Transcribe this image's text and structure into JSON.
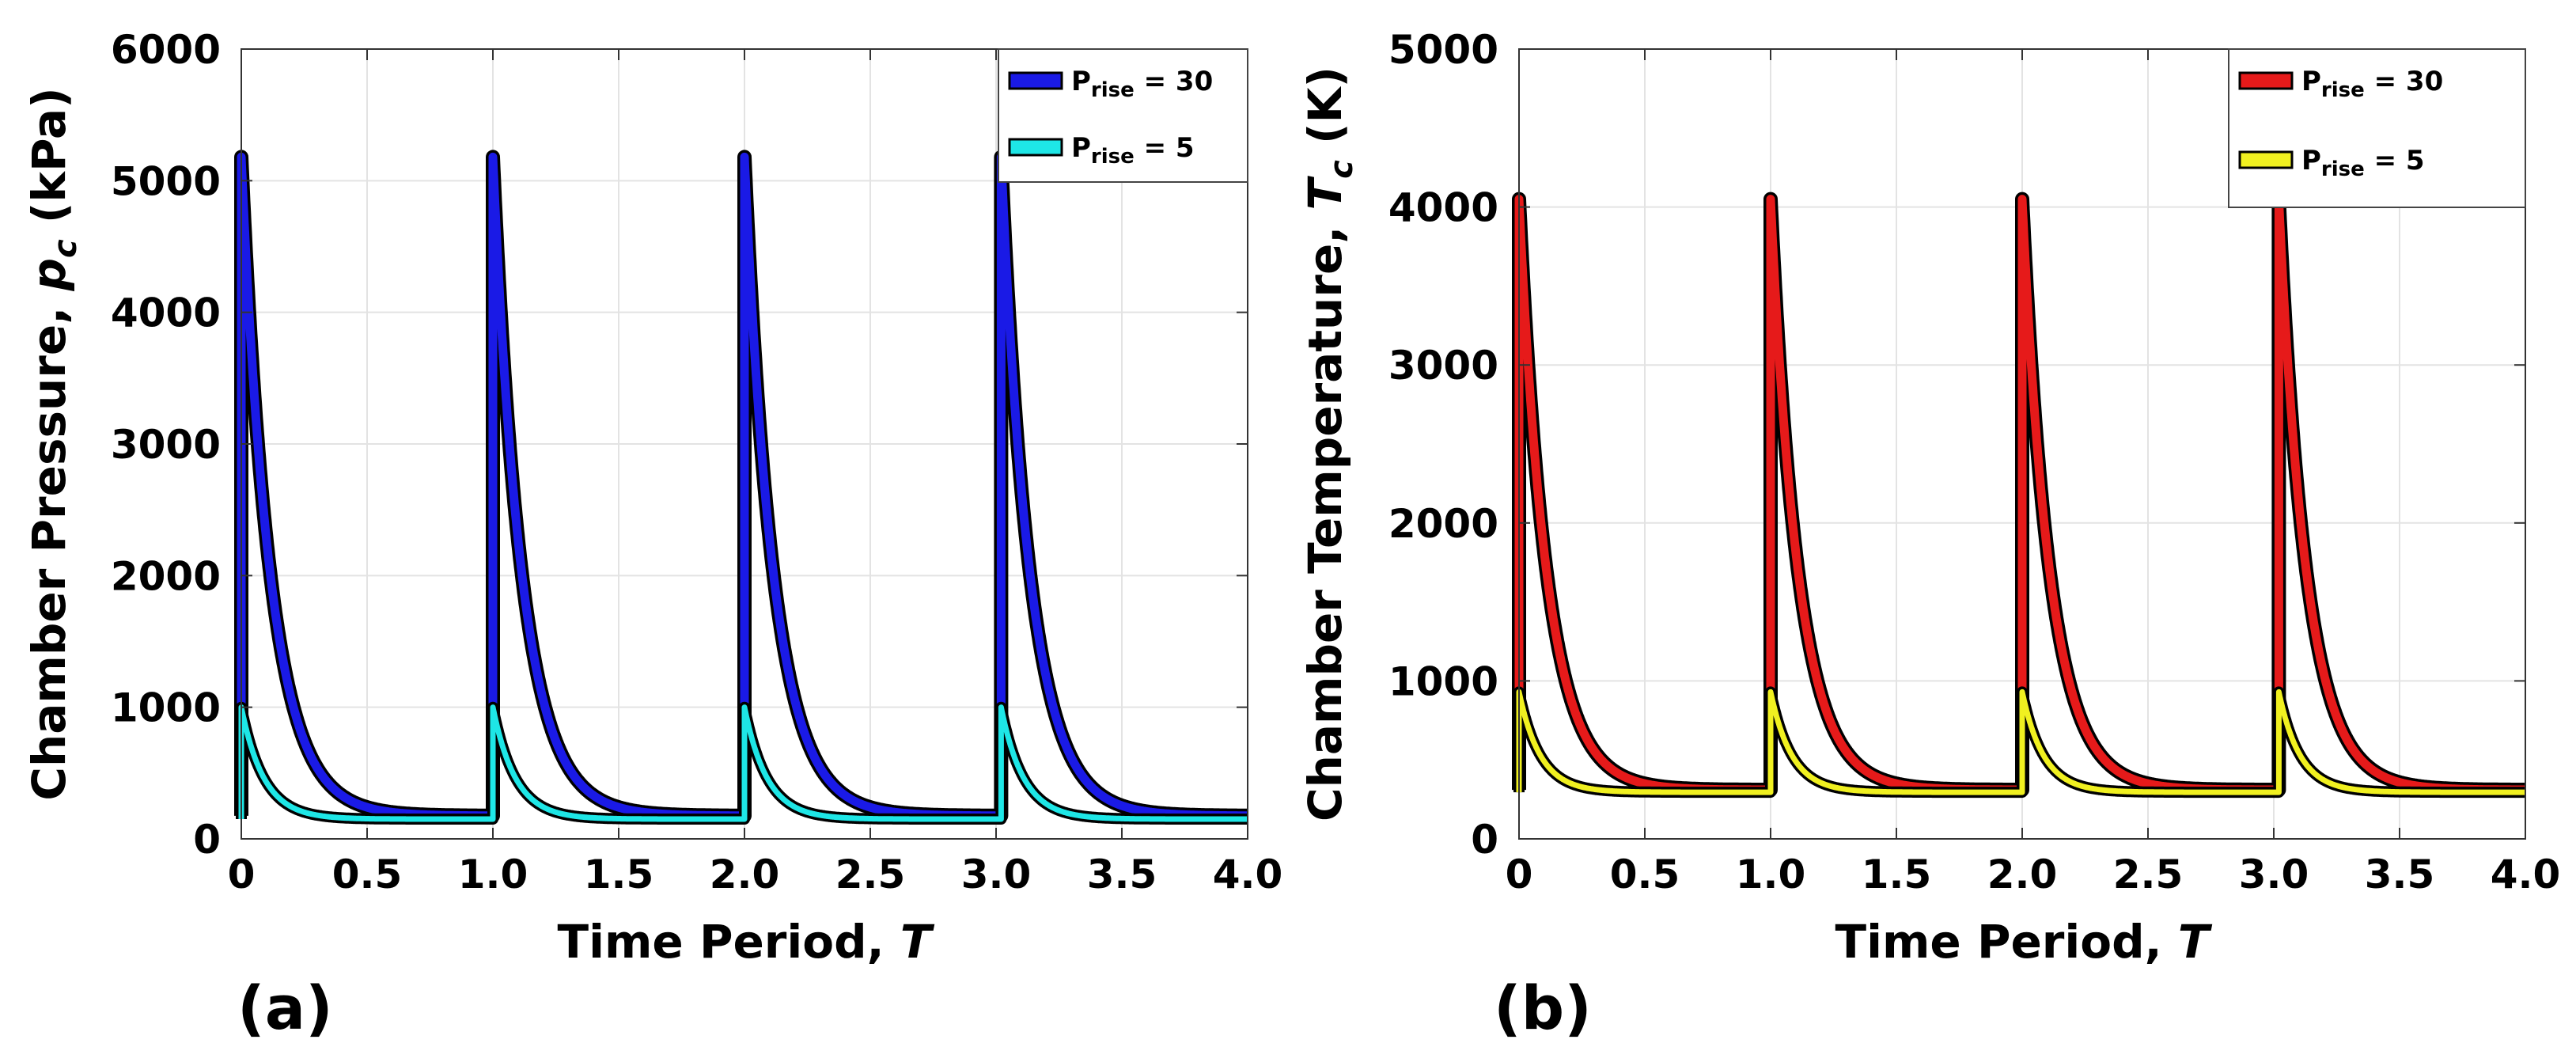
{
  "chart_data": [
    {
      "type": "line",
      "panel_label": "(a)",
      "title": "",
      "xlabel": "Time Period, ",
      "xlabel_var": "T",
      "ylabel": "Chamber Pressure, ",
      "ylabel_var": "p",
      "ylabel_sub": "c",
      "ylabel_unit": " (kPa)",
      "xlim": [
        0,
        4
      ],
      "ylim": [
        0,
        6000
      ],
      "xticks": [
        "0",
        "0.5",
        "1.0",
        "1.5",
        "2.0",
        "2.5",
        "3.0",
        "3.5",
        "4.0"
      ],
      "yticks": [
        "0",
        "1000",
        "2000",
        "3000",
        "4000",
        "5000",
        "6000"
      ],
      "grid": true,
      "legend_position": "top-right",
      "series": [
        {
          "name": "Prise = 30",
          "legend_main": "P",
          "legend_sub": "rise",
          "legend_rest": " = 30",
          "color": "#1a1ae6",
          "pulse_times": [
            0.0,
            1.0,
            2.0,
            3.02
          ],
          "peak": 5180,
          "baseline": 175,
          "decay_tau": 0.115
        },
        {
          "name": "Prise = 5",
          "legend_main": "P",
          "legend_sub": "rise",
          "legend_rest": " = 5",
          "color": "#1ee6e6",
          "pulse_times": [
            0.0,
            1.0,
            2.0,
            3.02
          ],
          "peak": 1000,
          "baseline": 150,
          "decay_tau": 0.09
        }
      ]
    },
    {
      "type": "line",
      "panel_label": "(b)",
      "title": "",
      "xlabel": "Time Period, ",
      "xlabel_var": "T",
      "ylabel": "Chamber Temperature, ",
      "ylabel_var": "T",
      "ylabel_sub": "c",
      "ylabel_unit": " (K)",
      "xlim": [
        0,
        4
      ],
      "ylim": [
        0,
        5000
      ],
      "xticks": [
        "0",
        "0.5",
        "1.0",
        "1.5",
        "2.0",
        "2.5",
        "3.0",
        "3.5",
        "4.0"
      ],
      "yticks": [
        "0",
        "1000",
        "2000",
        "3000",
        "4000",
        "5000"
      ],
      "grid": true,
      "legend_position": "top-right",
      "series": [
        {
          "name": "Prise = 30",
          "legend_main": "P",
          "legend_sub": "rise",
          "legend_rest": " = 30",
          "color": "#e61a1a",
          "pulse_times": [
            0.0,
            1.0,
            2.0,
            3.02
          ],
          "peak": 4050,
          "baseline": 310,
          "decay_tau": 0.11
        },
        {
          "name": "Prise = 5",
          "legend_main": "P",
          "legend_sub": "rise",
          "legend_rest": " = 5",
          "color": "#f0f020",
          "pulse_times": [
            0.0,
            1.0,
            2.0,
            3.02
          ],
          "peak": 930,
          "baseline": 295,
          "decay_tau": 0.085
        }
      ]
    }
  ]
}
